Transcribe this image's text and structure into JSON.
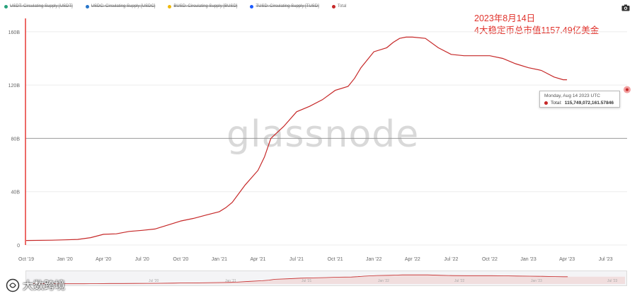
{
  "legend": [
    {
      "label": "USDT: Circulating Supply [USDT]",
      "color": "#26a17b",
      "visible": false
    },
    {
      "label": "USDC: Circulating Supply [USDC]",
      "color": "#2775ca",
      "visible": false
    },
    {
      "label": "BUSD: Circulating Supply [BUSD]",
      "color": "#f0b90b",
      "visible": false
    },
    {
      "label": "TUSD: Circulating Supply [TUSD]",
      "color": "#1a5aff",
      "visible": false
    },
    {
      "label": "Total",
      "color": "#c62828",
      "visible": true
    }
  ],
  "annotation": {
    "line1": "2023年8月14日",
    "line2": "4大稳定币总市值1157.49亿美金"
  },
  "tooltip": {
    "date": "Monday, Aug 14 2023 UTC",
    "label": "Total:",
    "value": "115,749,072,161.57846"
  },
  "watermark": "glassnode",
  "brand": "大数跨境",
  "colors": {
    "series": "#c62828",
    "annotation": "#e0322b",
    "axis_accent": "#e53935"
  },
  "chart_data": {
    "type": "line",
    "ylim": [
      0,
      170
    ],
    "yticks": [
      {
        "v": 0,
        "label": "0"
      },
      {
        "v": 40,
        "label": "40B"
      },
      {
        "v": 80,
        "label": "80B"
      },
      {
        "v": 120,
        "label": "120B"
      },
      {
        "v": 160,
        "label": "160B"
      }
    ],
    "xticks": [
      {
        "t": 0,
        "label": "Oct '19"
      },
      {
        "t": 3,
        "label": "Jan '20"
      },
      {
        "t": 6,
        "label": "Apr '20"
      },
      {
        "t": 9,
        "label": "Jul '20"
      },
      {
        "t": 12,
        "label": "Oct '20"
      },
      {
        "t": 15,
        "label": "Jan '21"
      },
      {
        "t": 18,
        "label": "Apr '21"
      },
      {
        "t": 21,
        "label": "Jul '21"
      },
      {
        "t": 24,
        "label": "Oct '21"
      },
      {
        "t": 27,
        "label": "Jan '22"
      },
      {
        "t": 30,
        "label": "Apr '22"
      },
      {
        "t": 33,
        "label": "Jul '22"
      },
      {
        "t": 36,
        "label": "Oct '22"
      },
      {
        "t": 39,
        "label": "Jan '23"
      },
      {
        "t": 42,
        "label": "Apr '23"
      },
      {
        "t": 45,
        "label": "Jul '23"
      }
    ],
    "series": [
      {
        "name": "Total",
        "points": [
          [
            0,
            3.4
          ],
          [
            2,
            3.6
          ],
          [
            3,
            3.9
          ],
          [
            4,
            4.2
          ],
          [
            5,
            5.5
          ],
          [
            6,
            8
          ],
          [
            7,
            8.4
          ],
          [
            8,
            10.2
          ],
          [
            9,
            11
          ],
          [
            10,
            12
          ],
          [
            11,
            15
          ],
          [
            12,
            18
          ],
          [
            13,
            20
          ],
          [
            14,
            22.5
          ],
          [
            15,
            25
          ],
          [
            15.5,
            28
          ],
          [
            16,
            32
          ],
          [
            17,
            45
          ],
          [
            18,
            56
          ],
          [
            18.5,
            66
          ],
          [
            19,
            80
          ],
          [
            20,
            89
          ],
          [
            21,
            100
          ],
          [
            22,
            104
          ],
          [
            23,
            109
          ],
          [
            24,
            116
          ],
          [
            25,
            119
          ],
          [
            25.5,
            125
          ],
          [
            26,
            133
          ],
          [
            27,
            145
          ],
          [
            28,
            148
          ],
          [
            28.5,
            152
          ],
          [
            29,
            155
          ],
          [
            29.5,
            156
          ],
          [
            30,
            156
          ],
          [
            31,
            155
          ],
          [
            32,
            148
          ],
          [
            33,
            143
          ],
          [
            34,
            142
          ],
          [
            35,
            142
          ],
          [
            36,
            142
          ],
          [
            37,
            140
          ],
          [
            38,
            136
          ],
          [
            39,
            133
          ],
          [
            40,
            131
          ],
          [
            41,
            126
          ],
          [
            41.7,
            124
          ],
          [
            42,
            124
          ]
        ]
      }
    ],
    "navigator_labels": [
      "Jul '20",
      "Jan '21",
      "Jul '21",
      "Jan '22",
      "Jul '22",
      "Jan '23",
      "Jul '23"
    ]
  }
}
